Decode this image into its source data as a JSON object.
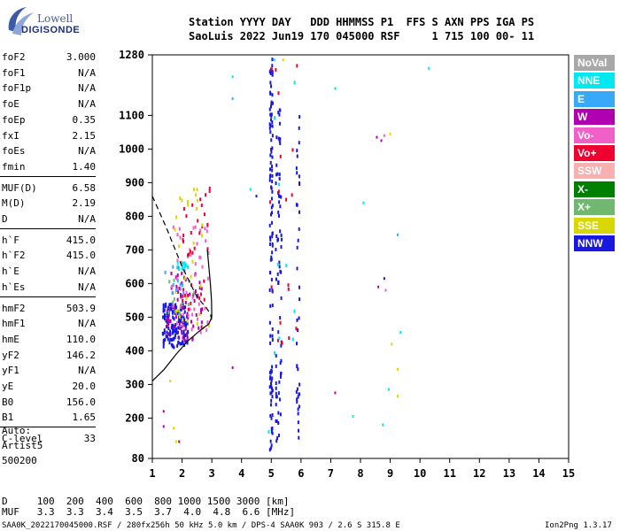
{
  "logo": {
    "line1": "Lowell",
    "line2": "DIGISONDE"
  },
  "header": {
    "line1": "Station YYYY DAY   DDD HHMMSS P1  FFS S AXN PPS IGA PS",
    "line2": "SaoLuis 2022 Jun19 170 045000 RSF     1 715 100 00- 11"
  },
  "params": [
    {
      "name": "foF2",
      "value": "3.000"
    },
    {
      "name": "foF1",
      "value": "N/A"
    },
    {
      "name": "foF1p",
      "value": "N/A"
    },
    {
      "name": "foE",
      "value": "N/A"
    },
    {
      "name": "foEp",
      "value": "0.35"
    },
    {
      "name": "fxI",
      "value": "2.15"
    },
    {
      "name": "foEs",
      "value": "N/A"
    },
    {
      "name": "fmin",
      "value": "1.40"
    },
    {
      "name": "MUF(D)",
      "value": "6.58"
    },
    {
      "name": "M(D)",
      "value": "2.19"
    },
    {
      "name": "D",
      "value": "N/A"
    },
    {
      "name": "h`F",
      "value": "415.0"
    },
    {
      "name": "h`F2",
      "value": "415.0"
    },
    {
      "name": "h`E",
      "value": "N/A"
    },
    {
      "name": "h`Es",
      "value": "N/A"
    },
    {
      "name": "hmF2",
      "value": "503.9"
    },
    {
      "name": "hmF1",
      "value": "N/A"
    },
    {
      "name": "hmE",
      "value": "110.0"
    },
    {
      "name": "yF2",
      "value": "146.2"
    },
    {
      "name": "yF1",
      "value": "N/A"
    },
    {
      "name": "yE",
      "value": "20.0"
    },
    {
      "name": "B0",
      "value": "156.0"
    },
    {
      "name": "B1",
      "value": "1.65"
    },
    {
      "name": "C-level",
      "value": "33"
    }
  ],
  "auto": {
    "line1": "Auto:",
    "line2": "Artist5",
    "line3": "500200"
  },
  "legend": [
    {
      "label": "NoVal",
      "color": "#a8a8a8"
    },
    {
      "label": "NNE",
      "color": "#00e8f0"
    },
    {
      "label": "E",
      "color": "#38a8f8"
    },
    {
      "label": "W",
      "color": "#b000b0"
    },
    {
      "label": "Vo-",
      "color": "#f060c8"
    },
    {
      "label": "Vo+",
      "color": "#f00030"
    },
    {
      "label": "SSW",
      "color": "#f8b0b0"
    },
    {
      "label": "X-",
      "color": "#008000"
    },
    {
      "label": "X+",
      "color": "#70b870"
    },
    {
      "label": "SSE",
      "color": "#d8d800"
    },
    {
      "label": "NNW",
      "color": "#1818e0"
    }
  ],
  "bottom": {
    "row1": "D     100  200  400  600  800 1000 1500 3000 [km]",
    "row2": "MUF   3.3  3.3  3.4  3.5  3.7  4.0  4.8  6.6 [MHz]",
    "footer_left": "SAA0K_2022170045000.RSF / 280fx256h 50 kHz 5.0 km / DPS-4 SAA0K 903 / 2.6 S 315.8 E",
    "footer_right": "Ion2Png 1.3.17"
  },
  "chart_data": {
    "type": "scatter",
    "xlim": [
      1,
      15
    ],
    "ylim": [
      80,
      1280
    ],
    "x_ticks": [
      1,
      2,
      3,
      4,
      5,
      6,
      7,
      8,
      9,
      10,
      11,
      12,
      13,
      14,
      15
    ],
    "y_ticks": [
      80,
      200,
      300,
      400,
      500,
      600,
      700,
      800,
      900,
      1000,
      1100,
      1280
    ],
    "grid": true,
    "profile_dashed": [
      [
        1,
        860
      ],
      [
        1.5,
        760
      ],
      [
        2,
        650
      ],
      [
        2.5,
        560
      ],
      [
        2.8,
        530
      ],
      [
        2.95,
        510
      ],
      [
        3.0,
        490
      ]
    ],
    "profile_solid": [
      [
        1,
        310
      ],
      [
        1.4,
        345
      ],
      [
        1.8,
        390
      ],
      [
        2.2,
        430
      ],
      [
        2.6,
        460
      ],
      [
        2.9,
        480
      ],
      [
        3.0,
        500
      ],
      [
        2.99,
        550
      ],
      [
        2.95,
        600
      ],
      [
        2.9,
        650
      ],
      [
        2.85,
        700
      ]
    ],
    "trace_clusters": [
      {
        "color": "#1818e0",
        "x_range": [
          1.35,
          2.2
        ],
        "y_range": [
          410,
          540
        ],
        "count": 140
      },
      {
        "color": "#b000b0",
        "x_range": [
          1.5,
          2.7
        ],
        "y_range": [
          430,
          640
        ],
        "count": 70
      },
      {
        "color": "#f060c8",
        "x_range": [
          1.6,
          2.9
        ],
        "y_range": [
          440,
          780
        ],
        "count": 45
      },
      {
        "color": "#f00030",
        "x_range": [
          2.0,
          3.0
        ],
        "y_range": [
          520,
          900
        ],
        "count": 35
      },
      {
        "color": "#d8d800",
        "x_range": [
          1.7,
          3.0
        ],
        "y_range": [
          460,
          900
        ],
        "count": 30
      },
      {
        "color": "#00e8f0",
        "x_range": [
          1.8,
          2.2
        ],
        "y_range": [
          640,
          670
        ],
        "count": 12
      },
      {
        "color": "#38a8f8",
        "x_range": [
          1.4,
          2.1
        ],
        "y_range": [
          560,
          660
        ],
        "count": 12
      },
      {
        "color": "#70b870",
        "x_range": [
          1.5,
          2.5
        ],
        "y_range": [
          480,
          610
        ],
        "count": 10
      },
      {
        "color": "#1818e0",
        "x_range": [
          4.95,
          5.05
        ],
        "y_range": [
          90,
          1270
        ],
        "count": 110
      },
      {
        "color": "#1818e0",
        "x_range": [
          5.15,
          5.35
        ],
        "y_range": [
          130,
          1150
        ],
        "count": 70
      },
      {
        "color": "#1818e0",
        "x_range": [
          5.85,
          5.95
        ],
        "y_range": [
          130,
          1110
        ],
        "count": 40
      },
      {
        "color": "#f00030",
        "x_range": [
          4.95,
          5.9
        ],
        "y_range": [
          150,
          1270
        ],
        "count": 18
      },
      {
        "color": "#00e8f0",
        "x_range": [
          4.9,
          5.9
        ],
        "y_range": [
          150,
          1250
        ],
        "count": 10
      }
    ],
    "scatter_points": [
      {
        "x": 1.38,
        "y": 220,
        "color": "#b000b0"
      },
      {
        "x": 1.38,
        "y": 175,
        "color": "#b000b0"
      },
      {
        "x": 1.72,
        "y": 170,
        "color": "#d8d800"
      },
      {
        "x": 1.8,
        "y": 130,
        "color": "#d8d800"
      },
      {
        "x": 1.9,
        "y": 130,
        "color": "#f00030"
      },
      {
        "x": 1.6,
        "y": 310,
        "color": "#d8d800"
      },
      {
        "x": 3.7,
        "y": 1215,
        "color": "#00e8f0"
      },
      {
        "x": 3.7,
        "y": 1150,
        "color": "#38a8f8"
      },
      {
        "x": 3.7,
        "y": 350,
        "color": "#b000b0"
      },
      {
        "x": 4.5,
        "y": 860,
        "color": "#1818e0"
      },
      {
        "x": 4.3,
        "y": 880,
        "color": "#00e8f0"
      },
      {
        "x": 5.1,
        "y": 1265,
        "color": "#00e8f0"
      },
      {
        "x": 5.4,
        "y": 1265,
        "color": "#d8d800"
      },
      {
        "x": 7.15,
        "y": 1180,
        "color": "#00e8f0"
      },
      {
        "x": 7.15,
        "y": 275,
        "color": "#b000b0"
      },
      {
        "x": 7.75,
        "y": 205,
        "color": "#00e8f0"
      },
      {
        "x": 8.1,
        "y": 840,
        "color": "#00e8f0"
      },
      {
        "x": 8.55,
        "y": 1035,
        "color": "#b000b0"
      },
      {
        "x": 8.7,
        "y": 1025,
        "color": "#b000b0"
      },
      {
        "x": 8.8,
        "y": 1040,
        "color": "#f060c8"
      },
      {
        "x": 8.6,
        "y": 590,
        "color": "#b000b0"
      },
      {
        "x": 8.8,
        "y": 615,
        "color": "#1818e0"
      },
      {
        "x": 8.85,
        "y": 580,
        "color": "#f060c8"
      },
      {
        "x": 8.75,
        "y": 180,
        "color": "#00e8f0"
      },
      {
        "x": 8.95,
        "y": 285,
        "color": "#00e8f0"
      },
      {
        "x": 9.05,
        "y": 420,
        "color": "#d8d800"
      },
      {
        "x": 9.25,
        "y": 745,
        "color": "#38a8f8"
      },
      {
        "x": 9.25,
        "y": 345,
        "color": "#d8d800"
      },
      {
        "x": 9.25,
        "y": 265,
        "color": "#d8d800"
      },
      {
        "x": 9.35,
        "y": 455,
        "color": "#00e8f0"
      },
      {
        "x": 10.3,
        "y": 1240,
        "color": "#00e8f0"
      },
      {
        "x": 9.0,
        "y": 1045,
        "color": "#d8d800"
      }
    ]
  }
}
